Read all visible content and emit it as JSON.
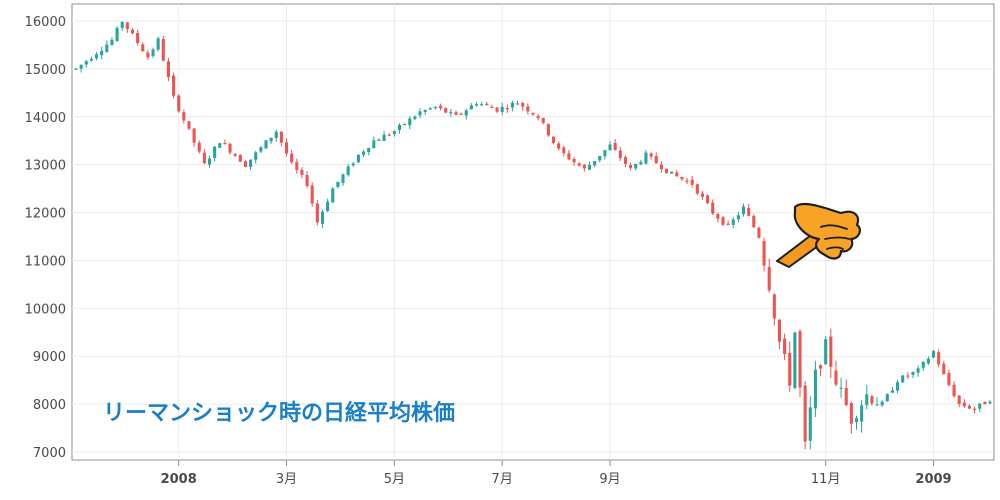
{
  "chart_data": {
    "type": "candlestick",
    "title": "",
    "annotation": "リーマンショック時の日経平均株価",
    "xlabel": "",
    "ylabel": "",
    "ylim": [
      6900,
      16300
    ],
    "y_ticks": [
      "16000",
      "15000",
      "14000",
      "13000",
      "12000",
      "11000",
      "10000",
      "9000",
      "8000",
      "7000"
    ],
    "x_ticks": [
      "2008",
      "3月",
      "5月",
      "7月",
      "9月",
      "11月",
      "2009"
    ],
    "grid": true,
    "up_color": "#26a69a",
    "down_color": "#ef5350",
    "series_trend": [
      {
        "t": 0,
        "v": 15000
      },
      {
        "t": 7,
        "v": 15600
      },
      {
        "t": 9,
        "v": 16000
      },
      {
        "t": 14,
        "v": 15250
      },
      {
        "t": 16,
        "v": 15600
      },
      {
        "t": 19,
        "v": 14400
      },
      {
        "t": 22,
        "v": 13700
      },
      {
        "t": 25,
        "v": 13000
      },
      {
        "t": 28,
        "v": 13500
      },
      {
        "t": 33,
        "v": 13000
      },
      {
        "t": 39,
        "v": 13700
      },
      {
        "t": 42,
        "v": 13000
      },
      {
        "t": 45,
        "v": 12600
      },
      {
        "t": 47,
        "v": 11800
      },
      {
        "t": 50,
        "v": 12500
      },
      {
        "t": 55,
        "v": 13200
      },
      {
        "t": 58,
        "v": 13500
      },
      {
        "t": 62,
        "v": 13700
      },
      {
        "t": 67,
        "v": 14100
      },
      {
        "t": 70,
        "v": 14200
      },
      {
        "t": 74,
        "v": 14000
      },
      {
        "t": 78,
        "v": 14300
      },
      {
        "t": 82,
        "v": 14150
      },
      {
        "t": 86,
        "v": 14300
      },
      {
        "t": 90,
        "v": 14000
      },
      {
        "t": 94,
        "v": 13300
      },
      {
        "t": 99,
        "v": 12900
      },
      {
        "t": 104,
        "v": 13400
      },
      {
        "t": 108,
        "v": 12900
      },
      {
        "t": 111,
        "v": 13200
      },
      {
        "t": 116,
        "v": 12800
      },
      {
        "t": 120,
        "v": 12600
      },
      {
        "t": 124,
        "v": 12000
      },
      {
        "t": 127,
        "v": 11700
      },
      {
        "t": 130,
        "v": 12100
      },
      {
        "t": 133,
        "v": 11500
      },
      {
        "t": 135,
        "v": 10500
      },
      {
        "t": 137,
        "v": 9300
      },
      {
        "t": 139,
        "v": 8500
      },
      {
        "t": 140,
        "v": 9500
      },
      {
        "t": 142,
        "v": 7100
      },
      {
        "t": 144,
        "v": 8600
      },
      {
        "t": 146,
        "v": 9200
      },
      {
        "t": 148,
        "v": 8500
      },
      {
        "t": 151,
        "v": 7700
      },
      {
        "t": 154,
        "v": 8200
      },
      {
        "t": 157,
        "v": 8000
      },
      {
        "t": 160,
        "v": 8500
      },
      {
        "t": 164,
        "v": 8700
      },
      {
        "t": 167,
        "v": 9100
      },
      {
        "t": 169,
        "v": 8600
      },
      {
        "t": 172,
        "v": 8000
      },
      {
        "t": 175,
        "v": 7900
      },
      {
        "t": 178,
        "v": 8100
      }
    ]
  }
}
